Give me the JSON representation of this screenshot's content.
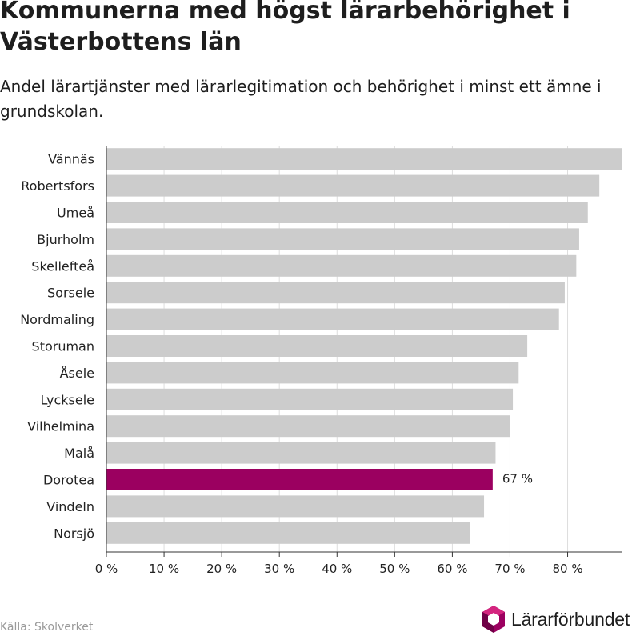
{
  "header": {
    "title": "Kommunerna med högst lärarbehörighet i Västerbottens län",
    "subtitle": "Andel lärartjänster med lärarlegitimation och behörighet i minst ett ämne i grundskolan."
  },
  "footer": {
    "source": "Källa: Skolverket",
    "brand_name": "Lärarförbundet",
    "logo_icon": "hexagon-logo-icon"
  },
  "colors": {
    "bar": "#cccccc",
    "highlight": "#9b0060",
    "grid": "#dddddd",
    "axis": "#333333",
    "text": "#222222"
  },
  "chart_data": {
    "type": "bar",
    "orientation": "horizontal",
    "categories": [
      "Vännäs",
      "Robertsfors",
      "Umeå",
      "Bjurholm",
      "Skellefteå",
      "Sorsele",
      "Nordmaling",
      "Storuman",
      "Åsele",
      "Lycksele",
      "Vilhelmina",
      "Malå",
      "Dorotea",
      "Vindeln",
      "Norsjö"
    ],
    "values": [
      89.5,
      85.5,
      83.5,
      82,
      81.5,
      79.5,
      78.5,
      73,
      71.5,
      70.5,
      70,
      67.5,
      67,
      65.5,
      63
    ],
    "highlight_category": "Dorotea",
    "data_labels": [
      {
        "category": "Dorotea",
        "text": "67 %"
      }
    ],
    "xlim": [
      0,
      89.5
    ],
    "xticks": [
      0,
      10,
      20,
      30,
      40,
      50,
      60,
      70,
      80
    ],
    "xtick_labels": [
      "0 %",
      "10 %",
      "20 %",
      "30 %",
      "40 %",
      "50 %",
      "60 %",
      "70 %",
      "80 %"
    ],
    "xlabel": "",
    "ylabel": "",
    "grid": "vertical"
  }
}
